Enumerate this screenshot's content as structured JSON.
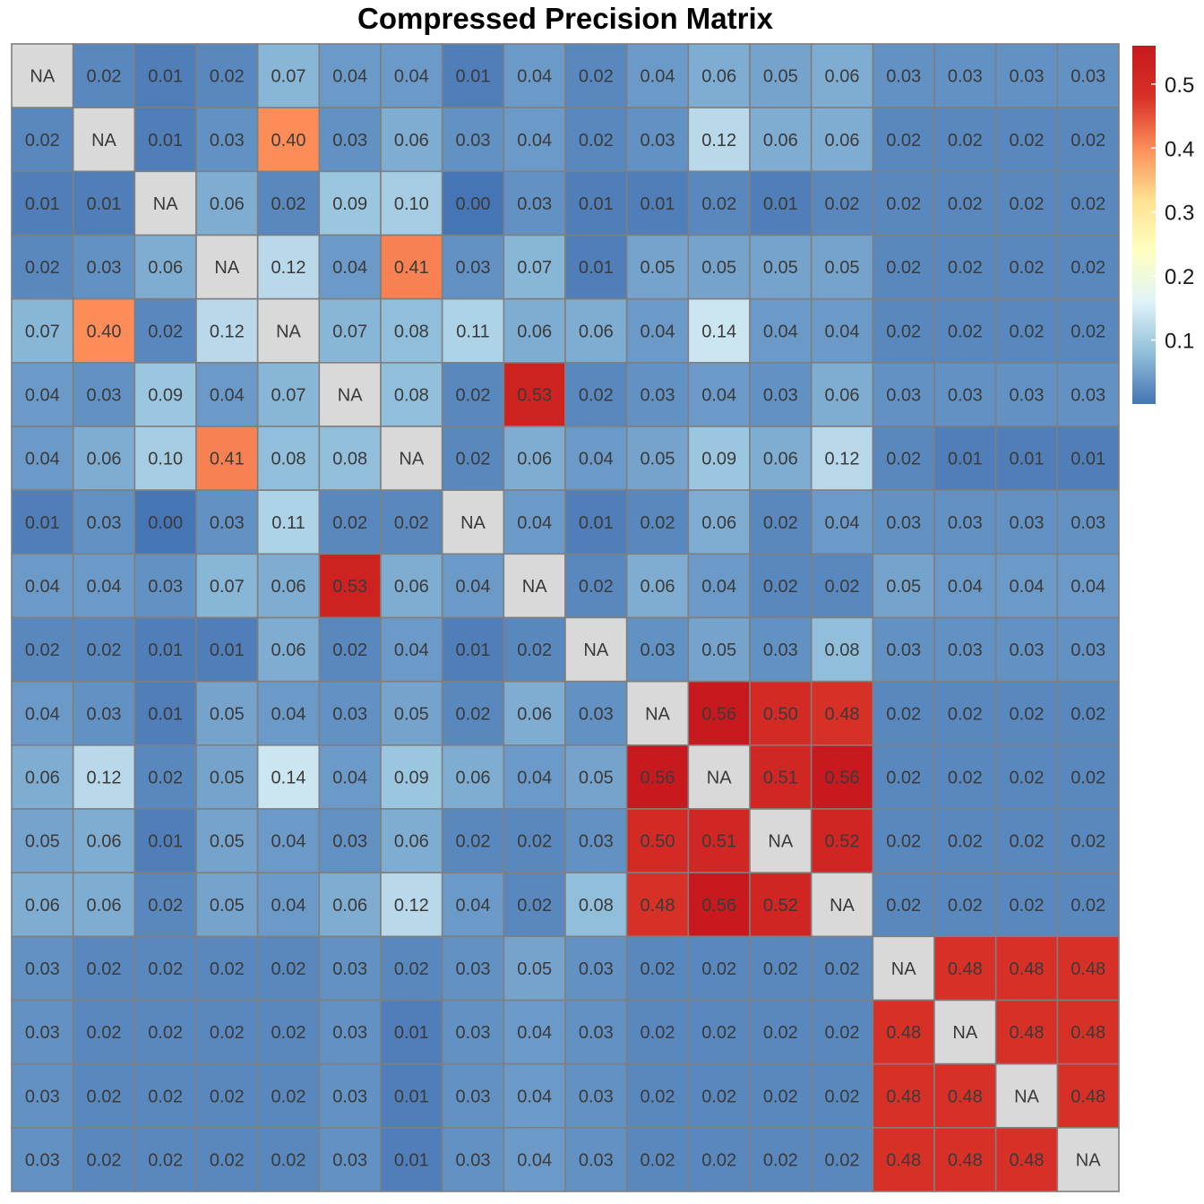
{
  "chart_data": {
    "type": "heatmap",
    "title": "Compressed Precision Matrix",
    "na_label": "NA",
    "na_color": "#d9d9d9",
    "grid_color": "#7f7f7f",
    "colorscale": [
      "#4575b4",
      "#91bfdb",
      "#e0f3f8",
      "#ffffbf",
      "#fee090",
      "#fc8d59",
      "#d73027",
      "#c8191e"
    ],
    "color_range": [
      0.0,
      0.56
    ],
    "legend": {
      "position": "right",
      "ticks": [
        {
          "value": 0.1,
          "label": "0.1"
        },
        {
          "value": 0.2,
          "label": "0.2"
        },
        {
          "value": 0.3,
          "label": "0.3"
        },
        {
          "value": 0.4,
          "label": "0.4"
        },
        {
          "value": 0.5,
          "label": "0.5"
        }
      ]
    },
    "values": [
      [
        null,
        0.02,
        0.01,
        0.02,
        0.07,
        0.04,
        0.04,
        0.01,
        0.04,
        0.02,
        0.04,
        0.06,
        0.05,
        0.06,
        0.03,
        0.03,
        0.03,
        0.03
      ],
      [
        0.02,
        null,
        0.01,
        0.03,
        0.4,
        0.03,
        0.06,
        0.03,
        0.04,
        0.02,
        0.03,
        0.12,
        0.06,
        0.06,
        0.02,
        0.02,
        0.02,
        0.02
      ],
      [
        0.01,
        0.01,
        null,
        0.06,
        0.02,
        0.09,
        0.1,
        0.0,
        0.03,
        0.01,
        0.01,
        0.02,
        0.01,
        0.02,
        0.02,
        0.02,
        0.02,
        0.02
      ],
      [
        0.02,
        0.03,
        0.06,
        null,
        0.12,
        0.04,
        0.41,
        0.03,
        0.07,
        0.01,
        0.05,
        0.05,
        0.05,
        0.05,
        0.02,
        0.02,
        0.02,
        0.02
      ],
      [
        0.07,
        0.4,
        0.02,
        0.12,
        null,
        0.07,
        0.08,
        0.11,
        0.06,
        0.06,
        0.04,
        0.14,
        0.04,
        0.04,
        0.02,
        0.02,
        0.02,
        0.02
      ],
      [
        0.04,
        0.03,
        0.09,
        0.04,
        0.07,
        null,
        0.08,
        0.02,
        0.53,
        0.02,
        0.03,
        0.04,
        0.03,
        0.06,
        0.03,
        0.03,
        0.03,
        0.03
      ],
      [
        0.04,
        0.06,
        0.1,
        0.41,
        0.08,
        0.08,
        null,
        0.02,
        0.06,
        0.04,
        0.05,
        0.09,
        0.06,
        0.12,
        0.02,
        0.01,
        0.01,
        0.01
      ],
      [
        0.01,
        0.03,
        0.0,
        0.03,
        0.11,
        0.02,
        0.02,
        null,
        0.04,
        0.01,
        0.02,
        0.06,
        0.02,
        0.04,
        0.03,
        0.03,
        0.03,
        0.03
      ],
      [
        0.04,
        0.04,
        0.03,
        0.07,
        0.06,
        0.53,
        0.06,
        0.04,
        null,
        0.02,
        0.06,
        0.04,
        0.02,
        0.02,
        0.05,
        0.04,
        0.04,
        0.04
      ],
      [
        0.02,
        0.02,
        0.01,
        0.01,
        0.06,
        0.02,
        0.04,
        0.01,
        0.02,
        null,
        0.03,
        0.05,
        0.03,
        0.08,
        0.03,
        0.03,
        0.03,
        0.03
      ],
      [
        0.04,
        0.03,
        0.01,
        0.05,
        0.04,
        0.03,
        0.05,
        0.02,
        0.06,
        0.03,
        null,
        0.56,
        0.5,
        0.48,
        0.02,
        0.02,
        0.02,
        0.02
      ],
      [
        0.06,
        0.12,
        0.02,
        0.05,
        0.14,
        0.04,
        0.09,
        0.06,
        0.04,
        0.05,
        0.56,
        null,
        0.51,
        0.56,
        0.02,
        0.02,
        0.02,
        0.02
      ],
      [
        0.05,
        0.06,
        0.01,
        0.05,
        0.04,
        0.03,
        0.06,
        0.02,
        0.02,
        0.03,
        0.5,
        0.51,
        null,
        0.52,
        0.02,
        0.02,
        0.02,
        0.02
      ],
      [
        0.06,
        0.06,
        0.02,
        0.05,
        0.04,
        0.06,
        0.12,
        0.04,
        0.02,
        0.08,
        0.48,
        0.56,
        0.52,
        null,
        0.02,
        0.02,
        0.02,
        0.02
      ],
      [
        0.03,
        0.02,
        0.02,
        0.02,
        0.02,
        0.03,
        0.02,
        0.03,
        0.05,
        0.03,
        0.02,
        0.02,
        0.02,
        0.02,
        null,
        0.48,
        0.48,
        0.48
      ],
      [
        0.03,
        0.02,
        0.02,
        0.02,
        0.02,
        0.03,
        0.01,
        0.03,
        0.04,
        0.03,
        0.02,
        0.02,
        0.02,
        0.02,
        0.48,
        null,
        0.48,
        0.48
      ],
      [
        0.03,
        0.02,
        0.02,
        0.02,
        0.02,
        0.03,
        0.01,
        0.03,
        0.04,
        0.03,
        0.02,
        0.02,
        0.02,
        0.02,
        0.48,
        0.48,
        null,
        0.48
      ],
      [
        0.03,
        0.02,
        0.02,
        0.02,
        0.02,
        0.03,
        0.01,
        0.03,
        0.04,
        0.03,
        0.02,
        0.02,
        0.02,
        0.02,
        0.48,
        0.48,
        0.48,
        null
      ]
    ]
  }
}
